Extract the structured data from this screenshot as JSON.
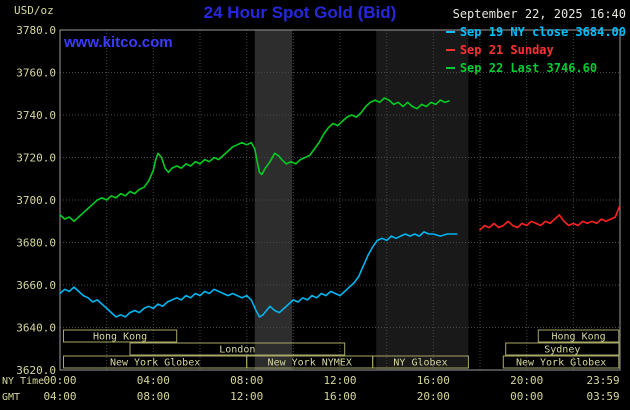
{
  "header": {
    "unit_label": "USD/oz",
    "title": "24 Hour Spot Gold (Bid)",
    "datetime": "September 22, 2025 16:40",
    "watermark": "www.kitco.com"
  },
  "legend": {
    "items": [
      {
        "id": "sep19",
        "label": "Sep 19 NY close 3684.00",
        "color": "#00c0ff"
      },
      {
        "id": "sep21",
        "label": "Sep 21 Sunday",
        "color": "#ff3030"
      },
      {
        "id": "sep22",
        "label": "Sep 22 Last 3746.60",
        "color": "#00cc33"
      }
    ]
  },
  "axes": {
    "ny_time_label": "NY Time",
    "gmt_label": "GMT",
    "ny_ticks": [
      "00:00",
      "04:00",
      "08:00",
      "12:00",
      "16:00",
      "20:00",
      "23:59"
    ],
    "gmt_ticks": [
      "04:00",
      "08:00",
      "12:00",
      "16:00",
      "20:00",
      "00:00",
      "03:59"
    ],
    "y_ticks": [
      "3780.0",
      "3760.0",
      "3740.0",
      "3720.0",
      "3700.0",
      "3680.0",
      "3660.0",
      "3640.0",
      "3620.0"
    ]
  },
  "sessions": [
    {
      "row": 0,
      "label": "Hong Kong",
      "start": 0.15,
      "end": 5.0
    },
    {
      "row": 0,
      "label": "Hong Kong",
      "start": 20.5,
      "end": 23.95
    },
    {
      "row": 1,
      "label": "London",
      "start": 3.0,
      "end": 12.2
    },
    {
      "row": 1,
      "label": "Sydney",
      "start": 19.1,
      "end": 23.95
    },
    {
      "row": 2,
      "label": "New York Globex",
      "start": 0.15,
      "end": 8.0
    },
    {
      "row": 2,
      "label": "New York NYMEX",
      "start": 8.0,
      "end": 13.4
    },
    {
      "row": 2,
      "label": "NY Globex",
      "start": 13.4,
      "end": 17.5
    },
    {
      "row": 2,
      "label": "New York Globex",
      "start": 19.0,
      "end": 23.95
    }
  ],
  "colors": {
    "background": "#000000",
    "title": "#2727dd",
    "watermark": "#3b3bff",
    "datetime": "#e6e6da",
    "tick": "#d6d69a",
    "grid": "#414b41",
    "border": "#9a9a9a",
    "session": "#a8a868",
    "session_text": "#d6d69a"
  },
  "chart_data": {
    "type": "line",
    "title": "24 Hour Spot Gold (Bid)",
    "xlabel": "NY Time",
    "ylabel": "USD/oz",
    "x_range_hours": [
      0,
      24
    ],
    "ylim": [
      3620,
      3780
    ],
    "y_step": 20,
    "grid": true,
    "legend_position": "top-right",
    "bands": [
      {
        "start": 8.35,
        "end": 9.95,
        "color": "#2d2d2d"
      },
      {
        "start": 13.55,
        "end": 17.5,
        "color": "#191919"
      }
    ],
    "series": [
      {
        "id": "sep22",
        "name": "Sep 22 Last 3746.60",
        "color": "#00cc22",
        "last": 3746.6,
        "points": [
          [
            0,
            3693
          ],
          [
            0.2,
            3691
          ],
          [
            0.4,
            3692
          ],
          [
            0.6,
            3690
          ],
          [
            0.8,
            3692
          ],
          [
            1,
            3694
          ],
          [
            1.2,
            3696
          ],
          [
            1.4,
            3698
          ],
          [
            1.6,
            3700
          ],
          [
            1.8,
            3701
          ],
          [
            2,
            3700
          ],
          [
            2.2,
            3702
          ],
          [
            2.4,
            3701
          ],
          [
            2.6,
            3703
          ],
          [
            2.8,
            3702
          ],
          [
            3,
            3704
          ],
          [
            3.2,
            3703
          ],
          [
            3.4,
            3705
          ],
          [
            3.6,
            3706
          ],
          [
            3.8,
            3709
          ],
          [
            4,
            3714
          ],
          [
            4.1,
            3719
          ],
          [
            4.2,
            3722
          ],
          [
            4.35,
            3720
          ],
          [
            4.5,
            3715
          ],
          [
            4.65,
            3713
          ],
          [
            4.8,
            3715
          ],
          [
            5,
            3716
          ],
          [
            5.2,
            3715
          ],
          [
            5.4,
            3717
          ],
          [
            5.6,
            3716
          ],
          [
            5.8,
            3718
          ],
          [
            6,
            3717
          ],
          [
            6.2,
            3719
          ],
          [
            6.4,
            3718
          ],
          [
            6.6,
            3720
          ],
          [
            6.8,
            3719
          ],
          [
            7,
            3721
          ],
          [
            7.2,
            3723
          ],
          [
            7.4,
            3725
          ],
          [
            7.6,
            3726
          ],
          [
            7.8,
            3727
          ],
          [
            8,
            3726
          ],
          [
            8.2,
            3727
          ],
          [
            8.35,
            3724
          ],
          [
            8.45,
            3718
          ],
          [
            8.55,
            3713
          ],
          [
            8.65,
            3712
          ],
          [
            8.8,
            3715
          ],
          [
            9,
            3718
          ],
          [
            9.2,
            3722
          ],
          [
            9.35,
            3721
          ],
          [
            9.5,
            3719
          ],
          [
            9.7,
            3717
          ],
          [
            9.9,
            3718
          ],
          [
            10.1,
            3717
          ],
          [
            10.3,
            3719
          ],
          [
            10.5,
            3720
          ],
          [
            10.7,
            3721
          ],
          [
            10.9,
            3724
          ],
          [
            11.1,
            3727
          ],
          [
            11.3,
            3731
          ],
          [
            11.5,
            3734
          ],
          [
            11.7,
            3736
          ],
          [
            11.9,
            3735
          ],
          [
            12.1,
            3737
          ],
          [
            12.3,
            3739
          ],
          [
            12.5,
            3740
          ],
          [
            12.7,
            3739
          ],
          [
            12.9,
            3741
          ],
          [
            13.1,
            3744
          ],
          [
            13.3,
            3746
          ],
          [
            13.5,
            3747
          ],
          [
            13.7,
            3746
          ],
          [
            13.9,
            3748
          ],
          [
            14.1,
            3747
          ],
          [
            14.3,
            3745
          ],
          [
            14.5,
            3746
          ],
          [
            14.7,
            3744
          ],
          [
            14.9,
            3746
          ],
          [
            15.1,
            3744
          ],
          [
            15.3,
            3743
          ],
          [
            15.5,
            3745
          ],
          [
            15.7,
            3744
          ],
          [
            15.9,
            3746
          ],
          [
            16.1,
            3745
          ],
          [
            16.3,
            3747
          ],
          [
            16.5,
            3746
          ],
          [
            16.67,
            3746.6
          ]
        ]
      },
      {
        "id": "sep19",
        "name": "Sep 19 NY close 3684.00",
        "color": "#00b4f0",
        "close": 3684.0,
        "points": [
          [
            0,
            3656
          ],
          [
            0.2,
            3658
          ],
          [
            0.4,
            3657
          ],
          [
            0.6,
            3659
          ],
          [
            0.8,
            3657
          ],
          [
            1,
            3655
          ],
          [
            1.2,
            3654
          ],
          [
            1.4,
            3652
          ],
          [
            1.6,
            3653
          ],
          [
            1.8,
            3651
          ],
          [
            2,
            3649
          ],
          [
            2.2,
            3647
          ],
          [
            2.4,
            3645
          ],
          [
            2.6,
            3646
          ],
          [
            2.8,
            3645
          ],
          [
            3,
            3647
          ],
          [
            3.2,
            3648
          ],
          [
            3.4,
            3647
          ],
          [
            3.6,
            3649
          ],
          [
            3.8,
            3650
          ],
          [
            4,
            3649
          ],
          [
            4.2,
            3651
          ],
          [
            4.4,
            3650
          ],
          [
            4.6,
            3652
          ],
          [
            4.8,
            3653
          ],
          [
            5,
            3654
          ],
          [
            5.2,
            3653
          ],
          [
            5.4,
            3655
          ],
          [
            5.6,
            3654
          ],
          [
            5.8,
            3656
          ],
          [
            6,
            3655
          ],
          [
            6.2,
            3657
          ],
          [
            6.4,
            3656
          ],
          [
            6.6,
            3658
          ],
          [
            6.8,
            3657
          ],
          [
            7,
            3656
          ],
          [
            7.2,
            3655
          ],
          [
            7.4,
            3656
          ],
          [
            7.6,
            3655
          ],
          [
            7.8,
            3654
          ],
          [
            8,
            3655
          ],
          [
            8.2,
            3653
          ],
          [
            8.4,
            3648
          ],
          [
            8.55,
            3645
          ],
          [
            8.7,
            3646
          ],
          [
            8.85,
            3648
          ],
          [
            9,
            3650
          ],
          [
            9.2,
            3648
          ],
          [
            9.4,
            3647
          ],
          [
            9.6,
            3649
          ],
          [
            9.8,
            3651
          ],
          [
            10,
            3653
          ],
          [
            10.2,
            3652
          ],
          [
            10.4,
            3654
          ],
          [
            10.6,
            3653
          ],
          [
            10.8,
            3655
          ],
          [
            11,
            3654
          ],
          [
            11.2,
            3656
          ],
          [
            11.4,
            3655
          ],
          [
            11.6,
            3657
          ],
          [
            11.8,
            3656
          ],
          [
            12,
            3655
          ],
          [
            12.2,
            3657
          ],
          [
            12.4,
            3659
          ],
          [
            12.6,
            3661
          ],
          [
            12.8,
            3664
          ],
          [
            13,
            3669
          ],
          [
            13.2,
            3674
          ],
          [
            13.4,
            3678
          ],
          [
            13.6,
            3681
          ],
          [
            13.8,
            3682
          ],
          [
            14,
            3681
          ],
          [
            14.2,
            3683
          ],
          [
            14.4,
            3682
          ],
          [
            14.6,
            3683
          ],
          [
            14.8,
            3684
          ],
          [
            15,
            3683
          ],
          [
            15.2,
            3684
          ],
          [
            15.4,
            3683
          ],
          [
            15.6,
            3685
          ],
          [
            15.8,
            3684
          ],
          [
            16,
            3684
          ],
          [
            16.3,
            3683
          ],
          [
            16.6,
            3684
          ],
          [
            17,
            3684
          ]
        ]
      },
      {
        "id": "sep21",
        "name": "Sep 21 Sunday",
        "color": "#ff2222",
        "points": [
          [
            18,
            3686
          ],
          [
            18.2,
            3688
          ],
          [
            18.4,
            3687
          ],
          [
            18.6,
            3689
          ],
          [
            18.8,
            3687
          ],
          [
            19,
            3688
          ],
          [
            19.2,
            3690
          ],
          [
            19.4,
            3688
          ],
          [
            19.6,
            3687
          ],
          [
            19.8,
            3689
          ],
          [
            20,
            3688
          ],
          [
            20.2,
            3690
          ],
          [
            20.4,
            3689
          ],
          [
            20.6,
            3688
          ],
          [
            20.8,
            3690
          ],
          [
            21,
            3689
          ],
          [
            21.2,
            3691
          ],
          [
            21.4,
            3693
          ],
          [
            21.6,
            3690
          ],
          [
            21.8,
            3688
          ],
          [
            22,
            3689
          ],
          [
            22.2,
            3688
          ],
          [
            22.4,
            3690
          ],
          [
            22.6,
            3689
          ],
          [
            22.8,
            3690
          ],
          [
            23,
            3689
          ],
          [
            23.2,
            3691
          ],
          [
            23.4,
            3690
          ],
          [
            23.6,
            3691
          ],
          [
            23.8,
            3692
          ],
          [
            23.98,
            3697
          ]
        ]
      }
    ]
  }
}
